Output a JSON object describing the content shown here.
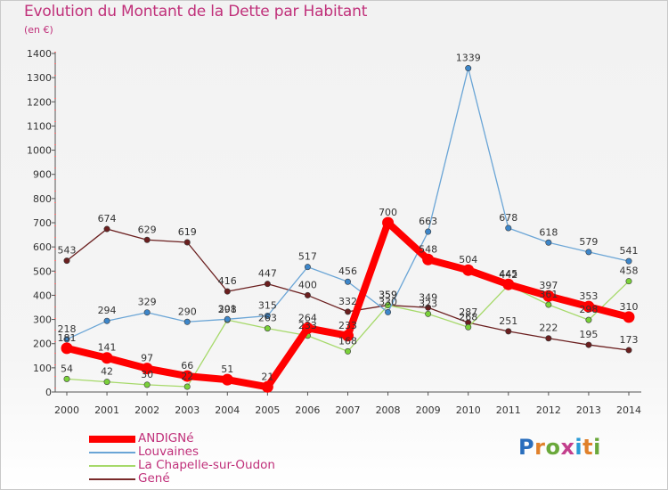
{
  "title": "Evolution du Montant de la Dette par Habitant",
  "subtitle": "(en €)",
  "logo": {
    "text": "Proxiti",
    "letter_colors": [
      "#2a6ebd",
      "#e0812b",
      "#6aa83a",
      "#c33f8d",
      "#2a9bd6",
      "#e0812b",
      "#6aa83a"
    ]
  },
  "legend": [
    {
      "label": "ANDIGNé",
      "color": "#ff0000"
    },
    {
      "label": "Louvaines",
      "color": "#6aa5d6"
    },
    {
      "label": "La Chapelle-sur-Oudon",
      "color": "#a6d96a"
    },
    {
      "label": "Gené",
      "color": "#7a2a2a"
    }
  ],
  "chart_data": {
    "type": "line",
    "title": "Evolution du Montant de la Dette par Habitant",
    "subtitle": "(en €)",
    "xlabel": "",
    "ylabel": "",
    "x": [
      "2000",
      "2001",
      "2002",
      "2003",
      "2004",
      "2005",
      "2006",
      "2007",
      "2008",
      "2009",
      "2010",
      "2011",
      "2012",
      "2013",
      "2014"
    ],
    "ylim": [
      0,
      1400
    ],
    "yticks": [
      0,
      100,
      200,
      300,
      400,
      500,
      600,
      700,
      800,
      900,
      1000,
      1100,
      1200,
      1300,
      1400
    ],
    "grid": false,
    "legend_position": "bottom-left",
    "series": [
      {
        "name": "Gené",
        "color": "#6b1f1f",
        "point_color": "#6b1f1f",
        "values": [
          543,
          674,
          629,
          619,
          416,
          447,
          400,
          332,
          359,
          349,
          287,
          251,
          222,
          195,
          173
        ]
      },
      {
        "name": "La Chapelle-sur-Oudon",
        "color": "#a6d96a",
        "point_color": "#7ad13a",
        "values": [
          54,
          42,
          30,
          22,
          298,
          263,
          233,
          168,
          359,
          323,
          268,
          442,
          361,
          298,
          458
        ]
      },
      {
        "name": "Louvaines",
        "color": "#6aa5d6",
        "point_color": "#3d86c9",
        "values": [
          218,
          294,
          329,
          290,
          301,
          315,
          517,
          456,
          330,
          663,
          1339,
          678,
          618,
          579,
          541
        ]
      },
      {
        "name": "ANDIGNé",
        "color": "#ff0000",
        "point_color": "#ff0000",
        "values": [
          181,
          141,
          97,
          66,
          51,
          21,
          264,
          233,
          700,
          548,
          504,
          445,
          397,
          353,
          310
        ]
      }
    ]
  }
}
